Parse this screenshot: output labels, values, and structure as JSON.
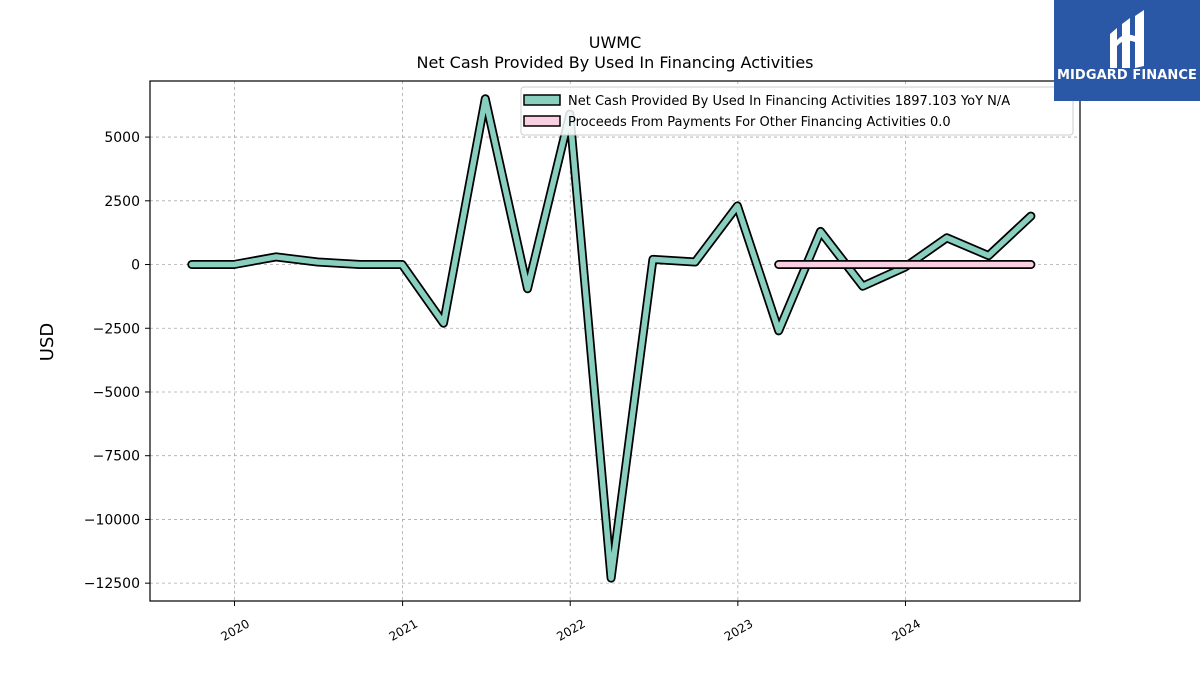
{
  "chart_data": {
    "type": "line",
    "title": "UWMC",
    "subtitle": "Net Cash Provided By Used In Financing Activities",
    "ylabel": "USD",
    "xlabel": "",
    "ylim": [
      -13200,
      7200
    ],
    "xlim": [
      "2019-07-01",
      "2025-01-15"
    ],
    "yticks": [
      5000,
      2500,
      0,
      -2500,
      -5000,
      -7500,
      -10000,
      -12500
    ],
    "ytick_labels": [
      "5000",
      "2500",
      "0",
      "−2500",
      "−5000",
      "−7500",
      "−10000",
      "−12500"
    ],
    "xticks": [
      "2020-01-01",
      "2021-01-01",
      "2022-01-01",
      "2023-01-01",
      "2024-01-01"
    ],
    "xtick_labels": [
      "2020",
      "2021",
      "2022",
      "2023",
      "2024"
    ],
    "grid": true,
    "legend_position": "top-right",
    "series": [
      {
        "name": "Net Cash Provided By Used In Financing Activities",
        "legend_label": "Net Cash Provided By Used In Financing Activities  1897.103 YoY N/A",
        "color": "#88cfc0",
        "x": [
          "2019-09-30",
          "2019-12-31",
          "2020-03-31",
          "2020-06-30",
          "2020-09-30",
          "2020-12-31",
          "2021-03-31",
          "2021-06-30",
          "2021-09-30",
          "2021-12-31",
          "2022-03-31",
          "2022-06-30",
          "2022-09-30",
          "2022-12-31",
          "2023-03-31",
          "2023-06-30",
          "2023-09-30",
          "2023-12-31",
          "2024-03-31",
          "2024-06-30",
          "2024-09-30"
        ],
        "y": [
          0,
          0,
          300,
          100,
          0,
          0,
          -2300,
          6500,
          -950,
          5900,
          -12300,
          200,
          100,
          2300,
          -2600,
          1300,
          -850,
          -100,
          1050,
          350,
          1900
        ]
      },
      {
        "name": "Proceeds From Payments For Other Financing Activities",
        "legend_label": "Proceeds From Payments For Other Financing Activities  0.0",
        "color": "#f9cfe2",
        "x": [
          "2023-03-31",
          "2023-06-30",
          "2023-09-30",
          "2023-12-31",
          "2024-03-31",
          "2024-06-30",
          "2024-09-30"
        ],
        "y": [
          0,
          0,
          0,
          0,
          0,
          0,
          0
        ]
      }
    ]
  },
  "branding": {
    "logo_text": "MIDGARD FINANCE",
    "logo_color": "#2a57a6"
  }
}
